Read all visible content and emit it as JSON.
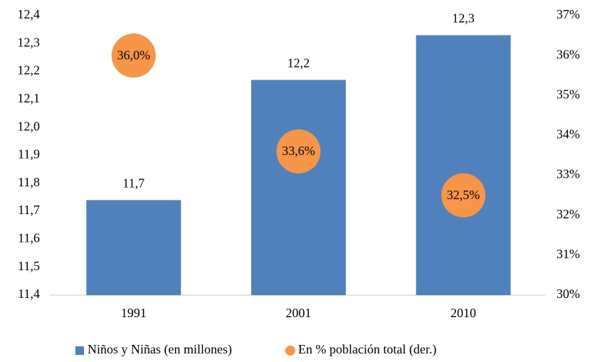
{
  "chart_data": {
    "type": "bar",
    "categories": [
      "1991",
      "2001",
      "2010"
    ],
    "series": [
      {
        "name": "Niños y Niñas (en millones)",
        "color": "#4f81bd",
        "type": "bar",
        "values": [
          11.74,
          12.17,
          12.33
        ],
        "value_labels": [
          "11,7",
          "12,2",
          "12,3"
        ]
      },
      {
        "name": "En % población total (der.)",
        "color": "#f79646",
        "type": "scatter",
        "axis": "y2",
        "values": [
          36.0,
          33.6,
          32.5
        ],
        "value_labels": [
          "36,0%",
          "33,6%",
          "32,5%"
        ]
      }
    ],
    "ylim": [
      11.4,
      12.4
    ],
    "yticks": [
      {
        "value": 11.4,
        "label": "11,4"
      },
      {
        "value": 11.5,
        "label": "11,5"
      },
      {
        "value": 11.6,
        "label": "11,6"
      },
      {
        "value": 11.7,
        "label": "11,7"
      },
      {
        "value": 11.8,
        "label": "11,8"
      },
      {
        "value": 11.9,
        "label": "11,9"
      },
      {
        "value": 12.0,
        "label": "12,0"
      },
      {
        "value": 12.1,
        "label": "12,1"
      },
      {
        "value": 12.2,
        "label": "12,2"
      },
      {
        "value": 12.3,
        "label": "12,3"
      },
      {
        "value": 12.4,
        "label": "12,4"
      }
    ],
    "y2lim": [
      30,
      37
    ],
    "y2ticks": [
      {
        "value": 30,
        "label": "30%"
      },
      {
        "value": 31,
        "label": "31%"
      },
      {
        "value": 32,
        "label": "32%"
      },
      {
        "value": 33,
        "label": "33%"
      },
      {
        "value": 34,
        "label": "34%"
      },
      {
        "value": 35,
        "label": "35%"
      },
      {
        "value": 36,
        "label": "36%"
      },
      {
        "value": 37,
        "label": "37%"
      }
    ],
    "grid": false,
    "legend": "bottom"
  }
}
